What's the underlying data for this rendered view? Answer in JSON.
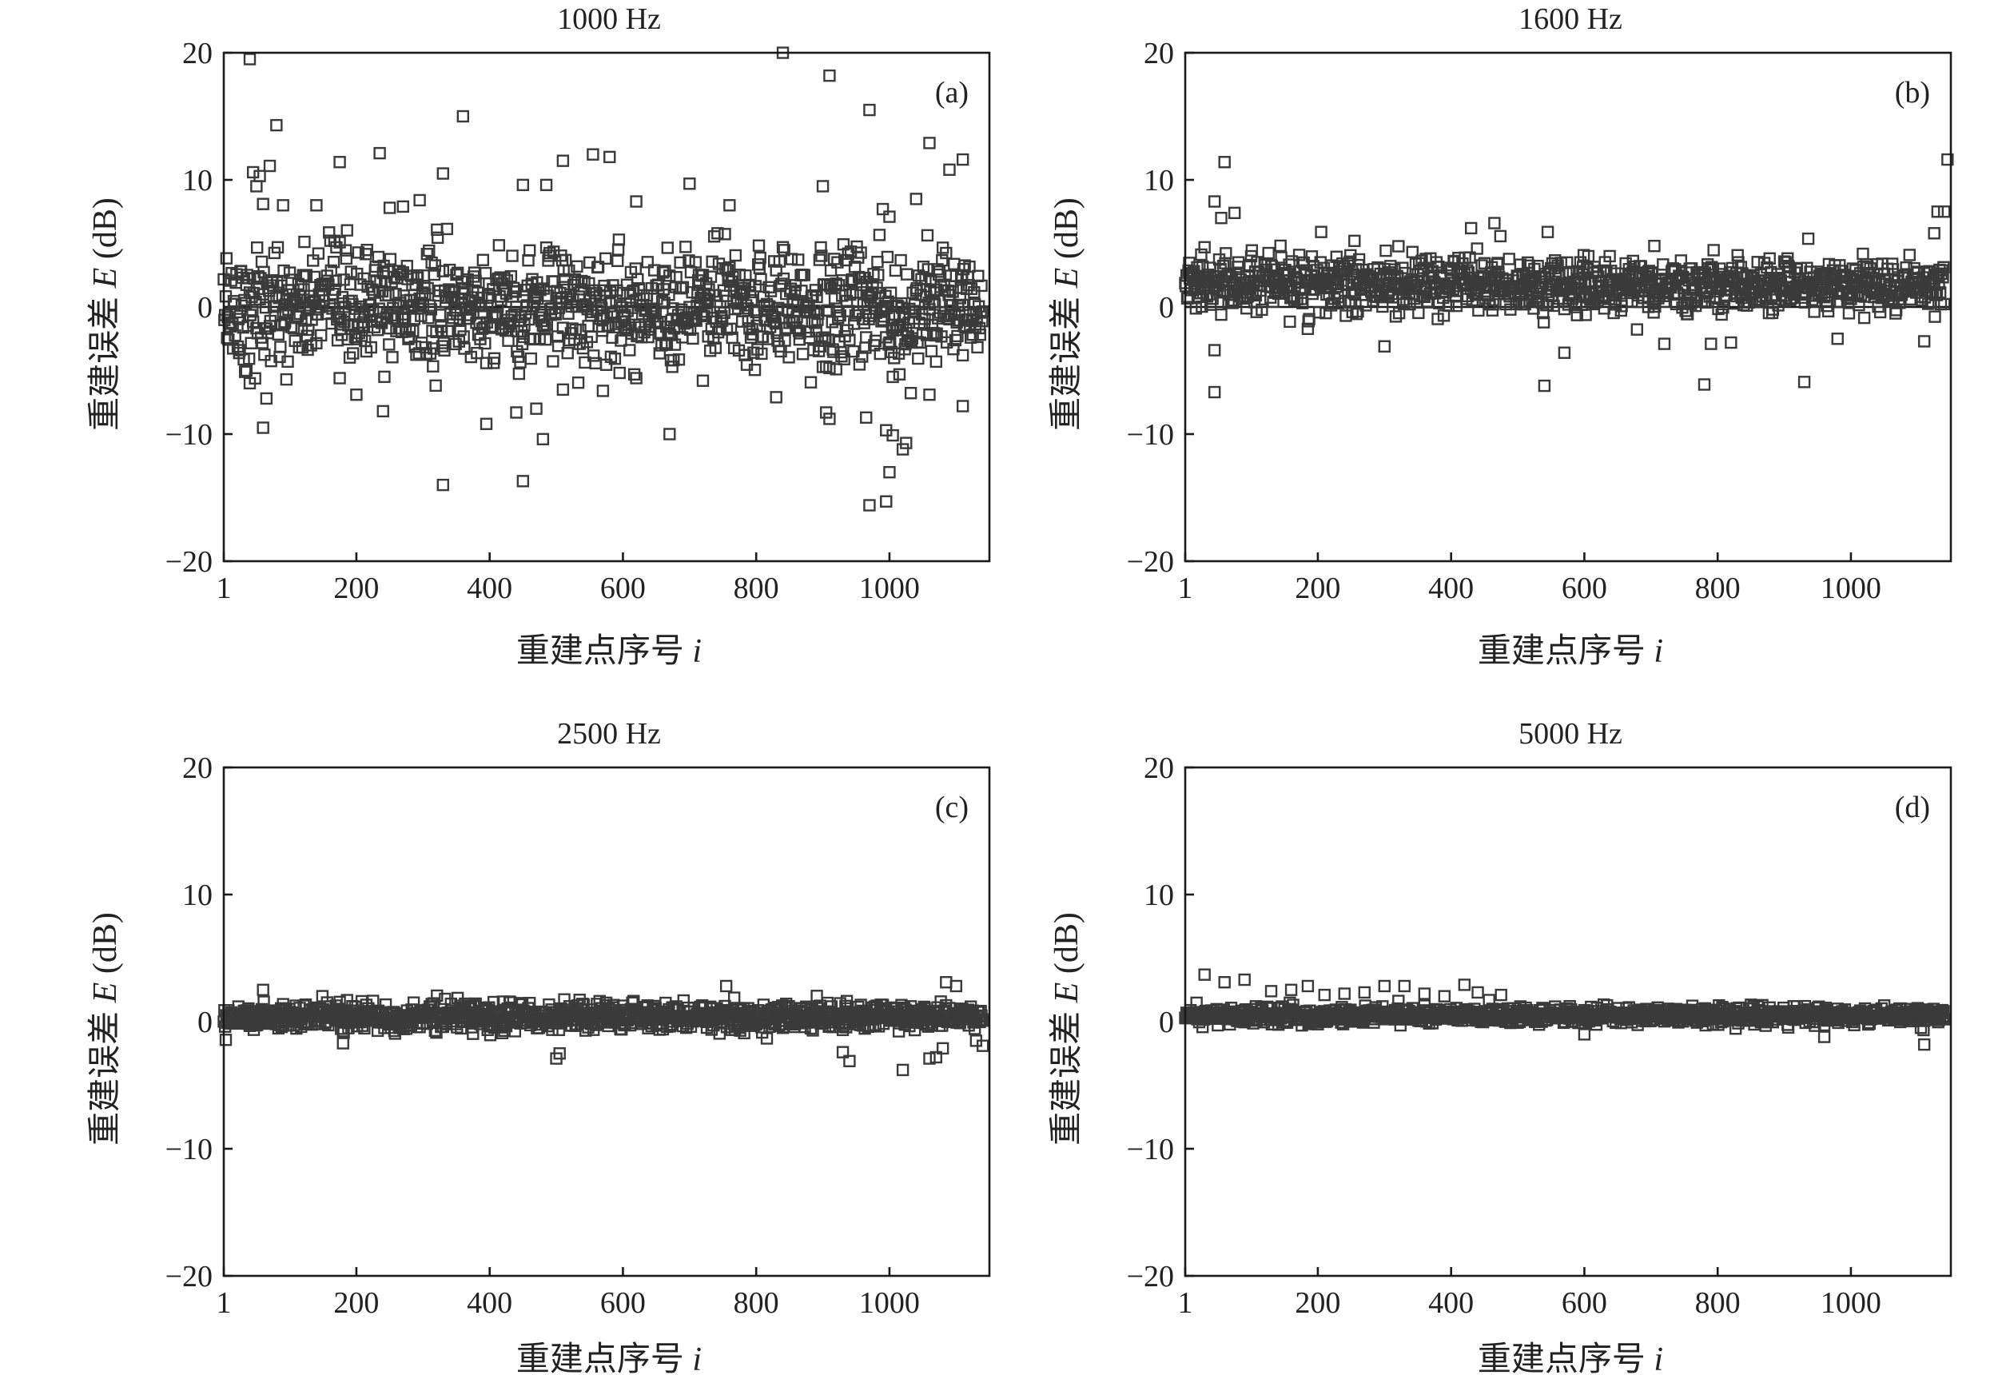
{
  "figure": {
    "panels": [
      {
        "title": "1000 Hz",
        "label": "(a)"
      },
      {
        "title": "1600 Hz",
        "label": "(b)"
      },
      {
        "title": "2500 Hz",
        "label": "(c)"
      },
      {
        "title": "5000 Hz",
        "label": "(d)"
      }
    ]
  },
  "chart_data": [
    {
      "type": "scatter",
      "title": "1000 Hz",
      "panel_label": "(a)",
      "xlabel": "重建点序号 i",
      "ylabel": "重建误差 E (dB)",
      "xlim": [
        1,
        1150
      ],
      "ylim": [
        -20,
        20
      ],
      "x_ticks": [
        "1",
        "200",
        "400",
        "600",
        "800",
        "1000"
      ],
      "y_ticks": [
        "20",
        "10",
        "0",
        "−10",
        "−20"
      ],
      "grid": false,
      "marker": "open-square",
      "series": [
        {
          "spread": 3.0,
          "points": [
            [
              40,
              19.5
            ],
            [
              840,
              20
            ],
            [
              910,
              18.2
            ],
            [
              360,
              15
            ],
            [
              970,
              15.5
            ],
            [
              80,
              14.3
            ],
            [
              1060,
              12.9
            ],
            [
              235,
              12.1
            ],
            [
              555,
              12
            ],
            [
              580,
              11.8
            ],
            [
              1110,
              11.6
            ],
            [
              510,
              11.5
            ],
            [
              175,
              11.4
            ],
            [
              70,
              11.1
            ],
            [
              1090,
              10.8
            ],
            [
              45,
              10.6
            ],
            [
              55,
              10.3
            ],
            [
              330,
              10.5
            ],
            [
              450,
              9.6
            ],
            [
              900,
              9.5
            ],
            [
              700,
              9.7
            ],
            [
              50,
              9.5
            ],
            [
              60,
              8.1
            ],
            [
              90,
              8
            ],
            [
              140,
              8
            ],
            [
              295,
              8.4
            ],
            [
              620,
              8.3
            ],
            [
              760,
              8
            ],
            [
              1040,
              8.5
            ],
            [
              270,
              7.9
            ],
            [
              250,
              7.8
            ],
            [
              990,
              7.7
            ],
            [
              1000,
              7.1
            ],
            [
              485,
              9.6
            ],
            [
              -1,
              0
            ],
            [
              35,
              -5
            ],
            [
              40,
              -6
            ],
            [
              60,
              -9.5
            ],
            [
              65,
              -7.2
            ],
            [
              95,
              -5.7
            ],
            [
              175,
              -5.6
            ],
            [
              200,
              -6.9
            ],
            [
              240,
              -8.2
            ],
            [
              330,
              -14
            ],
            [
              395,
              -9.2
            ],
            [
              440,
              -8.3
            ],
            [
              450,
              -13.7
            ],
            [
              470,
              -8
            ],
            [
              480,
              -10.4
            ],
            [
              510,
              -6.5
            ],
            [
              570,
              -6.6
            ],
            [
              620,
              -5.6
            ],
            [
              670,
              -10
            ],
            [
              720,
              -5.8
            ],
            [
              830,
              -7.1
            ],
            [
              905,
              -8.3
            ],
            [
              910,
              -8.8
            ],
            [
              965,
              -8.7
            ],
            [
              970,
              -15.6
            ],
            [
              995,
              -15.3
            ],
            [
              1000,
              -13
            ],
            [
              1020,
              -11.2
            ],
            [
              1025,
              -10.7
            ],
            [
              1005,
              -10.1
            ],
            [
              995,
              -9.7
            ],
            [
              1110,
              -7.8
            ],
            [
              920,
              -4.9
            ],
            [
              1005,
              -5.5
            ],
            [
              1060,
              -6.9
            ],
            [
              1070,
              -4.3
            ],
            [
              1110,
              -3.8
            ],
            [
              1015,
              -5.3
            ]
          ]
        }
      ]
    },
    {
      "type": "scatter",
      "title": "1600 Hz",
      "panel_label": "(b)",
      "xlabel": "重建点序号 i",
      "ylabel": "重建误差 E (dB)",
      "xlim": [
        1,
        1150
      ],
      "ylim": [
        -20,
        20
      ],
      "x_ticks": [
        "1",
        "200",
        "400",
        "600",
        "800",
        "1000"
      ],
      "y_ticks": [
        "20",
        "10",
        "0",
        "−10",
        "−20"
      ],
      "grid": false,
      "marker": "open-square",
      "series": [
        {
          "spread": 1.4,
          "offset": 1.7,
          "points": [
            [
              60,
              11.4
            ],
            [
              1145,
              11.6
            ],
            [
              45,
              8.3
            ],
            [
              75,
              7.4
            ],
            [
              55,
              7
            ],
            [
              1130,
              7.5
            ],
            [
              1140,
              7.5
            ],
            [
              1125,
              5.8
            ],
            [
              465,
              6.6
            ],
            [
              430,
              6.2
            ],
            [
              545,
              5.9
            ],
            [
              205,
              5.9
            ],
            [
              255,
              5.2
            ],
            [
              705,
              4.8
            ],
            [
              30,
              4.7
            ],
            [
              45,
              -3.4
            ],
            [
              45,
              -6.7
            ],
            [
              540,
              -6.2
            ],
            [
              570,
              -3.6
            ],
            [
              300,
              -3.1
            ],
            [
              720,
              -2.9
            ],
            [
              780,
              -6.1
            ],
            [
              930,
              -5.9
            ],
            [
              790,
              -2.9
            ],
            [
              820,
              -2.8
            ],
            [
              1110,
              -2.7
            ],
            [
              980,
              -2.5
            ]
          ]
        }
      ]
    },
    {
      "type": "scatter",
      "title": "2500 Hz",
      "panel_label": "(c)",
      "xlabel": "重建点序号 i",
      "ylabel": "重建误差 E (dB)",
      "xlim": [
        1,
        1150
      ],
      "ylim": [
        -20,
        20
      ],
      "x_ticks": [
        "1",
        "200",
        "400",
        "600",
        "800",
        "1000"
      ],
      "y_ticks": [
        "20",
        "10",
        "0",
        "−10",
        "−20"
      ],
      "grid": false,
      "marker": "open-square",
      "series": [
        {
          "spread": 0.7,
          "offset": 0.4,
          "points": [
            [
              60,
              2.5
            ],
            [
              755,
              2.8
            ],
            [
              1085,
              3.1
            ],
            [
              1100,
              2.8
            ],
            [
              180,
              -1.7
            ],
            [
              500,
              -2.9
            ],
            [
              505,
              -2.5
            ],
            [
              930,
              -2.4
            ],
            [
              940,
              -3.1
            ],
            [
              1020,
              -3.8
            ],
            [
              1060,
              -2.9
            ],
            [
              1070,
              -2.8
            ],
            [
              1080,
              -2.1
            ],
            [
              1140,
              -1.9
            ],
            [
              1130,
              -1.5
            ]
          ]
        }
      ]
    },
    {
      "type": "scatter",
      "title": "5000 Hz",
      "panel_label": "(d)",
      "xlabel": "重建点序号 i",
      "ylabel": "重建误差 E (dB)",
      "xlim": [
        1,
        1150
      ],
      "ylim": [
        -20,
        20
      ],
      "x_ticks": [
        "1",
        "200",
        "400",
        "600",
        "800",
        "1000"
      ],
      "y_ticks": [
        "20",
        "10",
        "0",
        "−10",
        "−20"
      ],
      "grid": false,
      "marker": "open-square",
      "series": [
        {
          "spread": 0.45,
          "offset": 0.5,
          "points": [
            [
              30,
              3.7
            ],
            [
              60,
              3.1
            ],
            [
              90,
              3.3
            ],
            [
              130,
              2.4
            ],
            [
              160,
              2.5
            ],
            [
              185,
              2.8
            ],
            [
              210,
              2.1
            ],
            [
              240,
              2.2
            ],
            [
              270,
              2.3
            ],
            [
              300,
              2.8
            ],
            [
              330,
              2.8
            ],
            [
              360,
              2.2
            ],
            [
              390,
              2
            ],
            [
              420,
              2.9
            ],
            [
              440,
              2.3
            ],
            [
              475,
              2.1
            ],
            [
              1110,
              -1.8
            ],
            [
              960,
              -1.2
            ],
            [
              600,
              -1
            ]
          ]
        }
      ]
    }
  ]
}
